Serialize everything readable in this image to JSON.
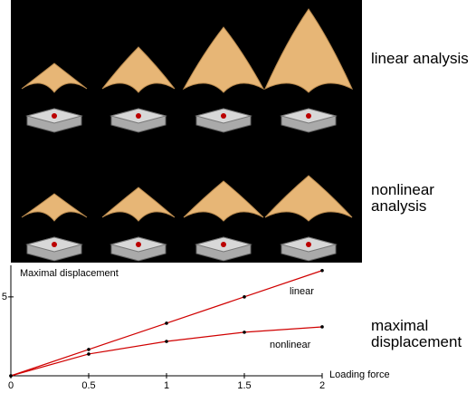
{
  "panel_labels": {
    "linear": "linear analysis",
    "nonlinear": "nonlinear analysis",
    "displacement": "maximal displacement"
  },
  "chart_data": {
    "type": "line",
    "y_label": "Maximal displacement",
    "x_label": "Loading force",
    "x": [
      0,
      0.5,
      1,
      1.5,
      2
    ],
    "series": [
      {
        "name": "linear",
        "color": "#d00000",
        "values": [
          0,
          1.67,
          3.33,
          5.0,
          6.67
        ]
      },
      {
        "name": "nonlinear",
        "color": "#d00000",
        "values": [
          0,
          1.38,
          2.18,
          2.76,
          3.1
        ]
      }
    ],
    "xlim": [
      0,
      2
    ],
    "xticks": [
      0,
      0.5,
      1,
      1.5,
      2
    ],
    "ylim": [
      0,
      7
    ],
    "yticks": [
      5
    ]
  }
}
